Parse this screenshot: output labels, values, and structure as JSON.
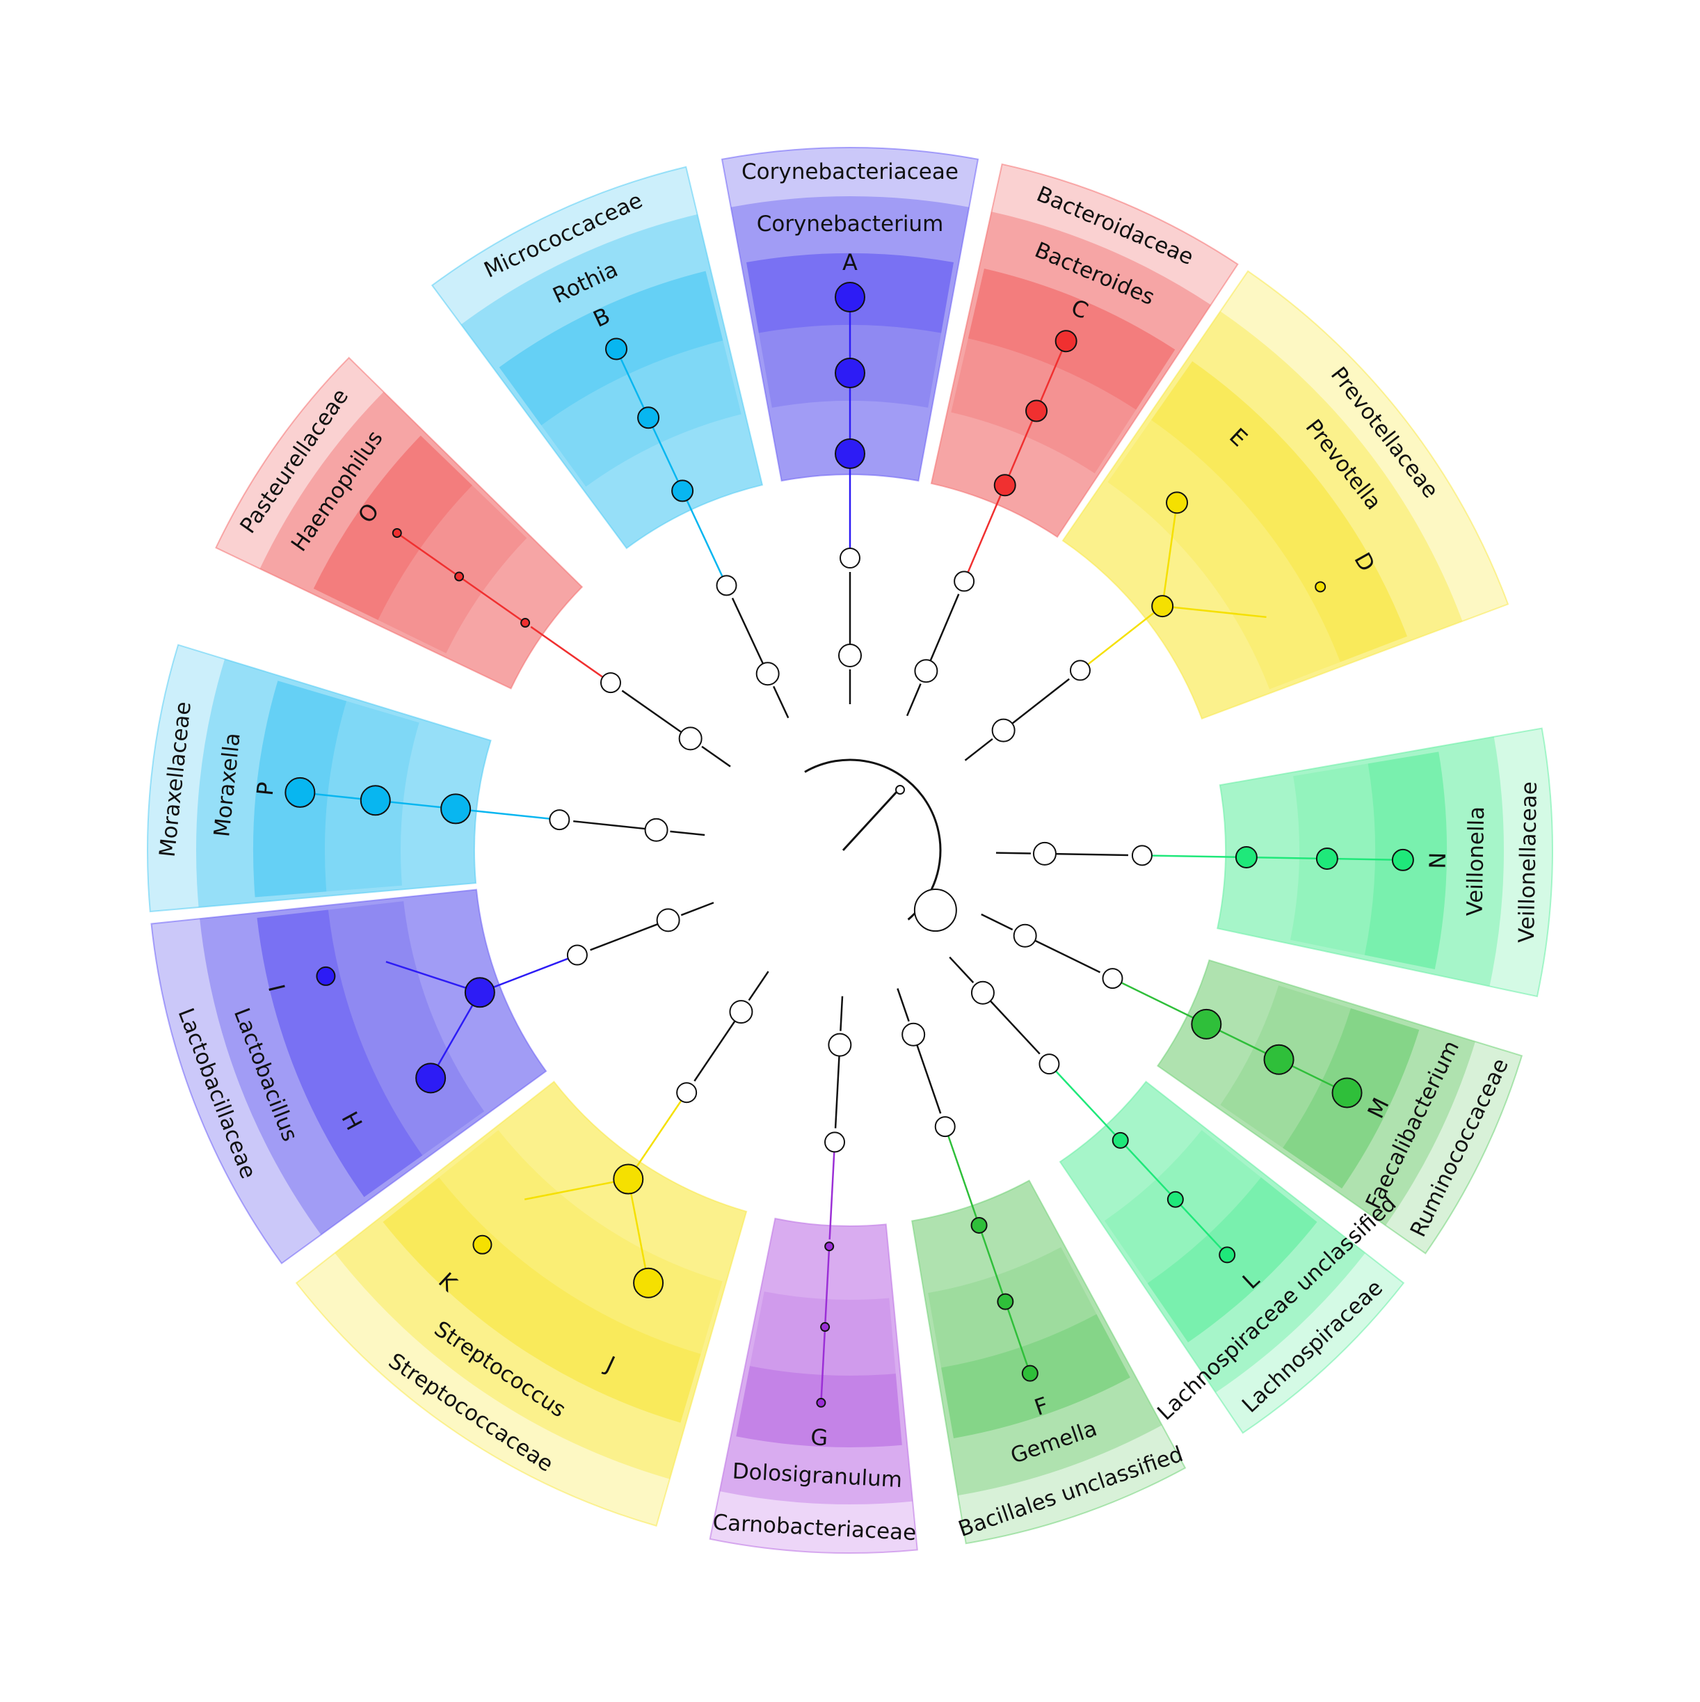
{
  "diagram": {
    "type": "circular-cladogram",
    "clades": [
      {
        "family": "Corynebacteriaceae",
        "genus": "Corynebacterium",
        "leaf": "A",
        "color": "#2d1cf5",
        "family_fill": "#8c86f2",
        "genus_fill": "#6e66ef",
        "center_deg": -90,
        "span_deg": 21,
        "layout": "single",
        "node_size": "large"
      },
      {
        "family": "Bacteroidaceae",
        "genus": "Bacteroides",
        "leaf": "C",
        "color": "#f03030",
        "family_fill": "#f59a9a",
        "genus_fill": "#f26f6f",
        "center_deg": -67,
        "span_deg": 21,
        "layout": "single",
        "node_size": "medium"
      },
      {
        "family": "Prevotellaceae",
        "genus": "Prevotella",
        "leaf": "E",
        "leaf2": "D",
        "color": "#f5e000",
        "family_fill": "#fbf07a",
        "genus_fill": "#f8e84a",
        "center_deg": -38,
        "span_deg": 35,
        "layout": "pair",
        "node_size": "medium"
      },
      {
        "family": "Veillonellaceae",
        "genus": "Veillonella",
        "leaf": "N",
        "color": "#1fe87a",
        "family_fill": "#9ff5c6",
        "genus_fill": "#6ff0a6",
        "center_deg": 1,
        "span_deg": 22,
        "layout": "single",
        "node_size": "medium"
      },
      {
        "family": "Ruminococcaceae",
        "genus": "Faecalibacterium",
        "leaf": "M",
        "color": "#2fbf3a",
        "family_fill": "#a9e0a9",
        "genus_fill": "#7fd07f",
        "center_deg": 26,
        "span_deg": 18,
        "layout": "single",
        "node_size": "large"
      },
      {
        "family": "Lachnospiraceae",
        "genus": "Lachnospiraceae unclassified",
        "leaf": "L",
        "color": "#1fe87a",
        "family_fill": "#9ff5c6",
        "genus_fill": "#6ff0a6",
        "center_deg": 47,
        "span_deg": 18,
        "layout": "single",
        "node_size": "small"
      },
      {
        "family": "Bacillales unclassified",
        "genus": "Gemella",
        "leaf": "F",
        "color": "#2fbf3a",
        "family_fill": "#a9e0a9",
        "genus_fill": "#7fd07f",
        "center_deg": 71,
        "span_deg": 19,
        "layout": "single",
        "node_size": "small"
      },
      {
        "family": "Carnobacteriaceae",
        "genus": "Dolosigranulum",
        "leaf": "G",
        "color": "#9b2fd6",
        "family_fill": "#d6a3ef",
        "genus_fill": "#c07be6",
        "center_deg": 93,
        "span_deg": 17,
        "layout": "single",
        "node_size": "tiny"
      },
      {
        "family": "Streptococcaceae",
        "genus": "Streptococcus",
        "leaf": "J",
        "leaf2": "K",
        "color": "#f5e000",
        "family_fill": "#fbf07a",
        "genus_fill": "#f8e84a",
        "center_deg": 124,
        "span_deg": 36,
        "layout": "pair",
        "node_size": "large"
      },
      {
        "family": "Lactobacillaceae",
        "genus": "Lactobacillus",
        "leaf": "H",
        "leaf2": "I",
        "color": "#2d1cf5",
        "family_fill": "#8c86f2",
        "genus_fill": "#6e66ef",
        "center_deg": 159,
        "span_deg": 30,
        "layout": "pair",
        "node_size": "large"
      },
      {
        "family": "Moraxellaceae",
        "genus": "Moraxella",
        "leaf": "P",
        "color": "#08b6f0",
        "family_fill": "#8fdcf6",
        "genus_fill": "#55ccf3",
        "center_deg": -174,
        "span_deg": 22,
        "layout": "single",
        "node_size": "large"
      },
      {
        "family": "Pasteurellaceae",
        "genus": "Haemophilus",
        "leaf": "O",
        "color": "#f03030",
        "family_fill": "#f59a9a",
        "genus_fill": "#f26f6f",
        "center_deg": -145,
        "span_deg": 19,
        "layout": "single",
        "node_size": "tiny"
      },
      {
        "family": "Micrococcaceae",
        "genus": "Rothia",
        "leaf": "B",
        "color": "#08b6f0",
        "family_fill": "#8fdcf6",
        "genus_fill": "#55ccf3",
        "center_deg": -115,
        "span_deg": 23,
        "layout": "single",
        "node_size": "medium"
      }
    ]
  }
}
